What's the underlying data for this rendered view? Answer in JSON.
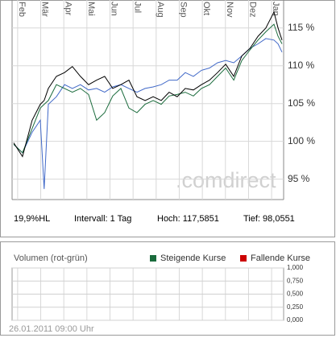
{
  "chart_data": [
    {
      "type": "line",
      "watermark": ".comdirect",
      "annotations": [
        "19,9%HL",
        "Intervall: 1 Tag",
        "Hoch: 117,5851",
        "Tief: 98,0551"
      ],
      "x": [
        -0.17,
        0.21,
        0.63,
        0.98,
        1.15,
        1.33,
        1.68,
        2.03,
        2.37,
        2.72,
        3.07,
        3.42,
        3.77,
        4.12,
        4.47,
        4.82,
        5.17,
        5.52,
        5.87,
        6.22,
        6.56,
        6.91,
        7.26,
        7.61,
        7.96,
        8.31,
        8.66,
        9.01,
        9.36,
        9.71,
        10.06,
        10.41,
        10.75,
        11.1,
        11.28,
        11.45
      ],
      "xlim": [
        -0.24,
        11.52
      ],
      "xticks": [
        {
          "value": 0,
          "label": "Feb"
        },
        {
          "value": 1,
          "label": "Mär"
        },
        {
          "value": 2,
          "label": "Apr"
        },
        {
          "value": 3,
          "label": "Mai"
        },
        {
          "value": 4,
          "label": "Jun"
        },
        {
          "value": 5,
          "label": "Jul"
        },
        {
          "value": 6,
          "label": "Aug"
        },
        {
          "value": 7,
          "label": "Sep"
        },
        {
          "value": 8,
          "label": "Okt"
        },
        {
          "value": 9,
          "label": "Nov"
        },
        {
          "value": 10,
          "label": "Dez"
        },
        {
          "value": 11,
          "label": "Jan"
        }
      ],
      "ylim": [
        92.3,
        118.7
      ],
      "yticks": [
        {
          "value": 95,
          "label": "95 %"
        },
        {
          "value": 100,
          "label": "100 %"
        },
        {
          "value": 105,
          "label": "105 %"
        },
        {
          "value": 110,
          "label": "110 %"
        },
        {
          "value": 115,
          "label": "115 %"
        }
      ],
      "grid": true,
      "series": [
        {
          "color": "#4169c8",
          "values": [
            99.6,
            98.5,
            101.2,
            102.8,
            93.7,
            104.9,
            105.9,
            107.5,
            107.0,
            107.5,
            106.8,
            107.0,
            106.5,
            107.2,
            107.5,
            107.0,
            106.5,
            107.0,
            107.2,
            107.5,
            108.1,
            108.1,
            109.1,
            108.6,
            109.4,
            109.7,
            110.4,
            110.7,
            110.4,
            111.3,
            112.3,
            112.9,
            113.6,
            113.4,
            112.9,
            111.8
          ]
        },
        {
          "color": "#1a6b3c",
          "values": [
            99.6,
            98.5,
            101.7,
            104.4,
            104.9,
            105.4,
            107.5,
            107.0,
            106.5,
            107.0,
            106.2,
            102.8,
            103.8,
            106.0,
            107.0,
            104.4,
            103.8,
            104.9,
            105.4,
            104.9,
            106.0,
            106.2,
            106.5,
            106.0,
            107.0,
            107.5,
            108.6,
            109.7,
            108.1,
            110.7,
            112.1,
            113.4,
            114.5,
            115.5,
            113.9,
            112.9
          ]
        },
        {
          "color": "#000000",
          "values": [
            99.8,
            98.0,
            102.8,
            104.9,
            105.4,
            107.0,
            108.6,
            109.1,
            109.9,
            108.6,
            107.5,
            108.1,
            108.6,
            107.0,
            107.5,
            108.1,
            105.9,
            105.4,
            105.9,
            105.4,
            106.5,
            105.9,
            107.0,
            106.8,
            107.5,
            108.1,
            109.1,
            110.2,
            108.6,
            111.3,
            112.3,
            113.9,
            115.0,
            117.1,
            115.0,
            113.4
          ]
        }
      ]
    },
    {
      "type": "bar",
      "title": "Volumen (rot-grün)",
      "series": [
        {
          "name": "Steigende Kurse",
          "color": "#1a6b3c"
        },
        {
          "name": "Fallende Kurse",
          "color": "#cc0000"
        }
      ],
      "ylim": [
        0,
        1
      ],
      "yticks": [
        {
          "value": 0,
          "label": "0,000"
        },
        {
          "value": 0.25,
          "label": "0,250"
        },
        {
          "value": 0.5,
          "label": "0,500"
        },
        {
          "value": 0.75,
          "label": "0,750"
        },
        {
          "value": 1,
          "label": "1,000"
        }
      ],
      "grid": true,
      "footnote": "26.01.2011 09:00 Uhr"
    }
  ]
}
